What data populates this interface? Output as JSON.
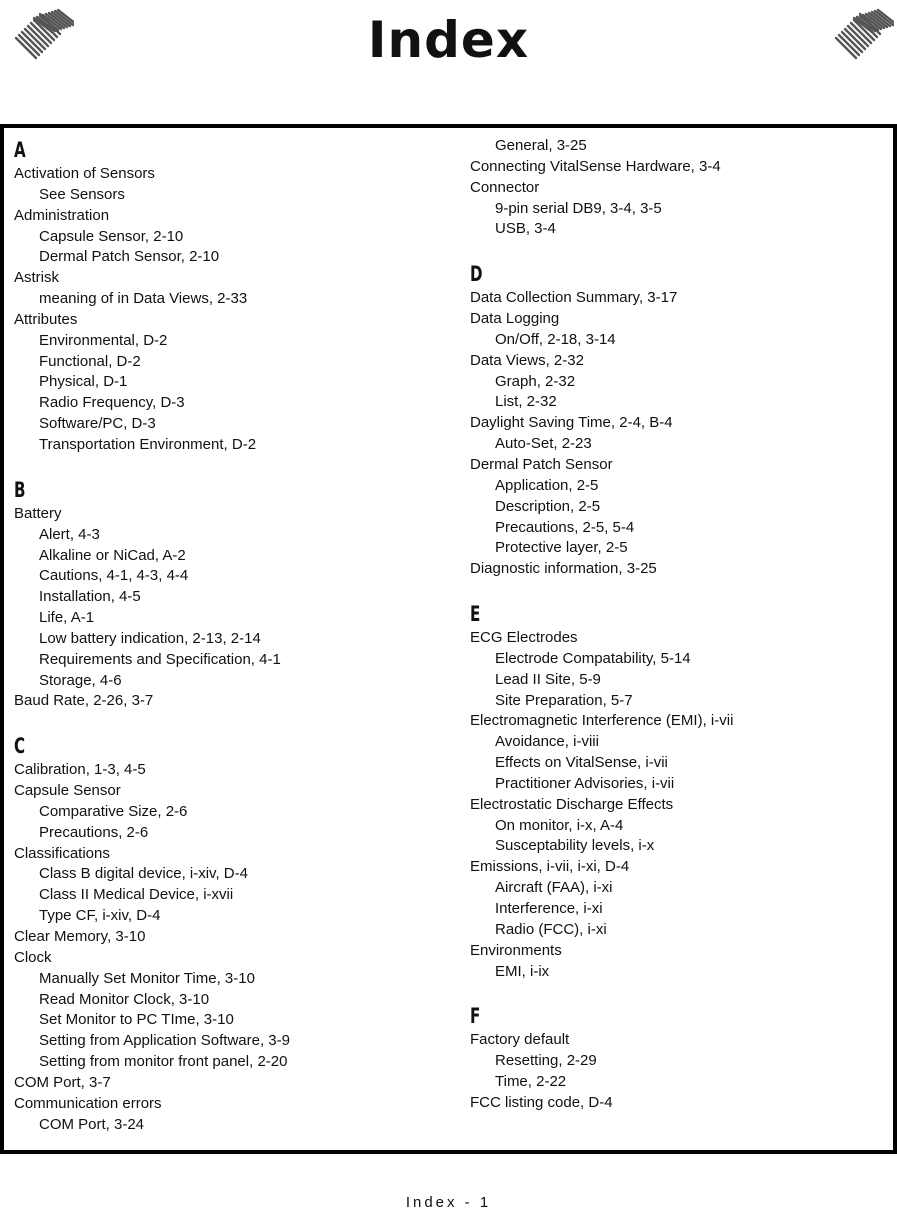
{
  "header": {
    "title": "Index"
  },
  "columns": [
    [
      {
        "t": "h",
        "text": "A"
      },
      {
        "t": "e",
        "text": "Activation of Sensors"
      },
      {
        "t": "s",
        "text": "See Sensors"
      },
      {
        "t": "e",
        "text": "Administration"
      },
      {
        "t": "s",
        "text": "Capsule Sensor, 2-10"
      },
      {
        "t": "s",
        "text": "Dermal Patch Sensor, 2-10"
      },
      {
        "t": "e",
        "text": "Astrisk"
      },
      {
        "t": "s",
        "text": "meaning of in Data Views, 2-33"
      },
      {
        "t": "e",
        "text": "Attributes"
      },
      {
        "t": "s",
        "text": "Environmental, D-2"
      },
      {
        "t": "s",
        "text": "Functional, D-2"
      },
      {
        "t": "s",
        "text": "Physical, D-1"
      },
      {
        "t": "s",
        "text": "Radio Frequency, D-3"
      },
      {
        "t": "s",
        "text": "Software/PC, D-3"
      },
      {
        "t": "s",
        "text": "Transportation Environment, D-2"
      },
      {
        "t": "h",
        "text": "B"
      },
      {
        "t": "e",
        "text": "Battery"
      },
      {
        "t": "s",
        "text": "Alert, 4-3"
      },
      {
        "t": "s",
        "text": "Alkaline or NiCad, A-2"
      },
      {
        "t": "s",
        "text": "Cautions, 4-1, 4-3, 4-4"
      },
      {
        "t": "s",
        "text": "Installation, 4-5"
      },
      {
        "t": "s",
        "text": "Life, A-1"
      },
      {
        "t": "s",
        "text": "Low battery indication, 2-13, 2-14"
      },
      {
        "t": "s",
        "text": "Requirements and Specification, 4-1"
      },
      {
        "t": "s",
        "text": "Storage, 4-6"
      },
      {
        "t": "e",
        "text": "Baud Rate, 2-26, 3-7"
      },
      {
        "t": "h",
        "text": "C"
      },
      {
        "t": "e",
        "text": "Calibration, 1-3, 4-5"
      },
      {
        "t": "e",
        "text": "Capsule Sensor"
      },
      {
        "t": "s",
        "text": "Comparative Size, 2-6"
      },
      {
        "t": "s",
        "text": "Precautions, 2-6"
      },
      {
        "t": "e",
        "text": "Classifications"
      },
      {
        "t": "s",
        "text": "Class B digital device, i-xiv, D-4"
      },
      {
        "t": "s",
        "text": "Class II Medical Device, i-xvii"
      },
      {
        "t": "s",
        "text": "Type CF, i-xiv, D-4"
      },
      {
        "t": "e",
        "text": "Clear Memory, 3-10"
      },
      {
        "t": "e",
        "text": "Clock"
      },
      {
        "t": "s",
        "text": "Manually Set Monitor Time, 3-10"
      },
      {
        "t": "s",
        "text": "Read Monitor Clock, 3-10"
      },
      {
        "t": "s",
        "text": "Set Monitor to PC TIme, 3-10"
      },
      {
        "t": "s",
        "text": "Setting from Application Software, 3-9"
      },
      {
        "t": "s",
        "text": "Setting from monitor front panel, 2-20"
      },
      {
        "t": "e",
        "text": "COM Port, 3-7"
      },
      {
        "t": "e",
        "text": "Communication errors"
      },
      {
        "t": "s",
        "text": "COM Port, 3-24"
      }
    ],
    [
      {
        "t": "s",
        "text": "General, 3-25"
      },
      {
        "t": "e",
        "text": "Connecting VitalSense Hardware, 3-4"
      },
      {
        "t": "e",
        "text": "Connector"
      },
      {
        "t": "s",
        "text": "9-pin serial DB9, 3-4, 3-5"
      },
      {
        "t": "s",
        "text": "USB, 3-4"
      },
      {
        "t": "h",
        "text": "D"
      },
      {
        "t": "e",
        "text": "Data Collection Summary, 3-17"
      },
      {
        "t": "e",
        "text": "Data Logging"
      },
      {
        "t": "s",
        "text": "On/Off, 2-18, 3-14"
      },
      {
        "t": "e",
        "text": "Data Views, 2-32"
      },
      {
        "t": "s",
        "text": "Graph, 2-32"
      },
      {
        "t": "s",
        "text": "List, 2-32"
      },
      {
        "t": "e",
        "text": "Daylight Saving Time, 2-4, B-4"
      },
      {
        "t": "s",
        "text": "Auto-Set, 2-23"
      },
      {
        "t": "e",
        "text": "Dermal Patch Sensor"
      },
      {
        "t": "s",
        "text": "Application, 2-5"
      },
      {
        "t": "s",
        "text": "Description, 2-5"
      },
      {
        "t": "s",
        "text": "Precautions, 2-5, 5-4"
      },
      {
        "t": "s",
        "text": "Protective layer, 2-5"
      },
      {
        "t": "e",
        "text": "Diagnostic information, 3-25"
      },
      {
        "t": "h",
        "text": "E"
      },
      {
        "t": "e",
        "text": "ECG Electrodes"
      },
      {
        "t": "s",
        "text": "Electrode Compatability, 5-14"
      },
      {
        "t": "s",
        "text": "Lead II Site, 5-9"
      },
      {
        "t": "s",
        "text": "Site Preparation, 5-7"
      },
      {
        "t": "e",
        "text": "Electromagnetic Interference (EMI), i-vii"
      },
      {
        "t": "s",
        "text": "Avoidance, i-viii"
      },
      {
        "t": "s",
        "text": "Effects on VitalSense, i-vii"
      },
      {
        "t": "s",
        "text": "Practitioner Advisories, i-vii"
      },
      {
        "t": "e",
        "text": "Electrostatic Discharge Effects"
      },
      {
        "t": "s",
        "text": "On monitor, i-x, A-4"
      },
      {
        "t": "s",
        "text": "Susceptability levels, i-x"
      },
      {
        "t": "e",
        "text": "Emissions, i-vii, i-xi, D-4"
      },
      {
        "t": "s",
        "text": "Aircraft (FAA), i-xi"
      },
      {
        "t": "s",
        "text": "Interference, i-xi"
      },
      {
        "t": "s",
        "text": "Radio (FCC), i-xi"
      },
      {
        "t": "e",
        "text": "Environments"
      },
      {
        "t": "s",
        "text": "EMI, i-ix"
      },
      {
        "t": "h",
        "text": "F"
      },
      {
        "t": "e",
        "text": "Factory default"
      },
      {
        "t": "s",
        "text": "Resetting, 2-29"
      },
      {
        "t": "s",
        "text": "Time, 2-22"
      },
      {
        "t": "e",
        "text": "FCC listing code, D-4"
      }
    ]
  ],
  "footer": {
    "page_label": "Index - 1"
  }
}
